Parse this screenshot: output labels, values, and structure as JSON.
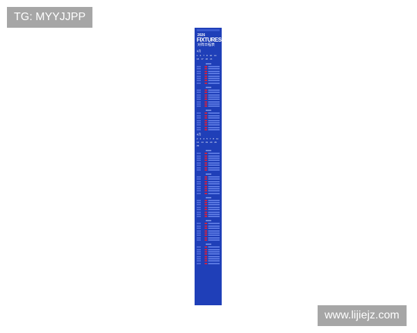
{
  "watermarks": {
    "top_left": "TG: MYYJJPP",
    "bottom_right": "www.lijiejz.com"
  },
  "poster": {
    "year": "2026",
    "title": "FIXTURES",
    "subtitle": "对阵日程表",
    "months": [
      {
        "label": "3月",
        "days": [
          "1",
          "6",
          "7",
          "8",
          "10",
          "14",
          "16",
          "17",
          "20",
          "21"
        ],
        "blocks": 3
      },
      {
        "label": "4月",
        "days": [
          "2",
          "3",
          "4",
          "5",
          "7",
          "8",
          "11",
          "12",
          "14",
          "19",
          "23",
          "26",
          "29"
        ],
        "blocks": 5
      }
    ],
    "colors": {
      "background": "#1f3fb8",
      "accent": "#cc2244"
    }
  }
}
